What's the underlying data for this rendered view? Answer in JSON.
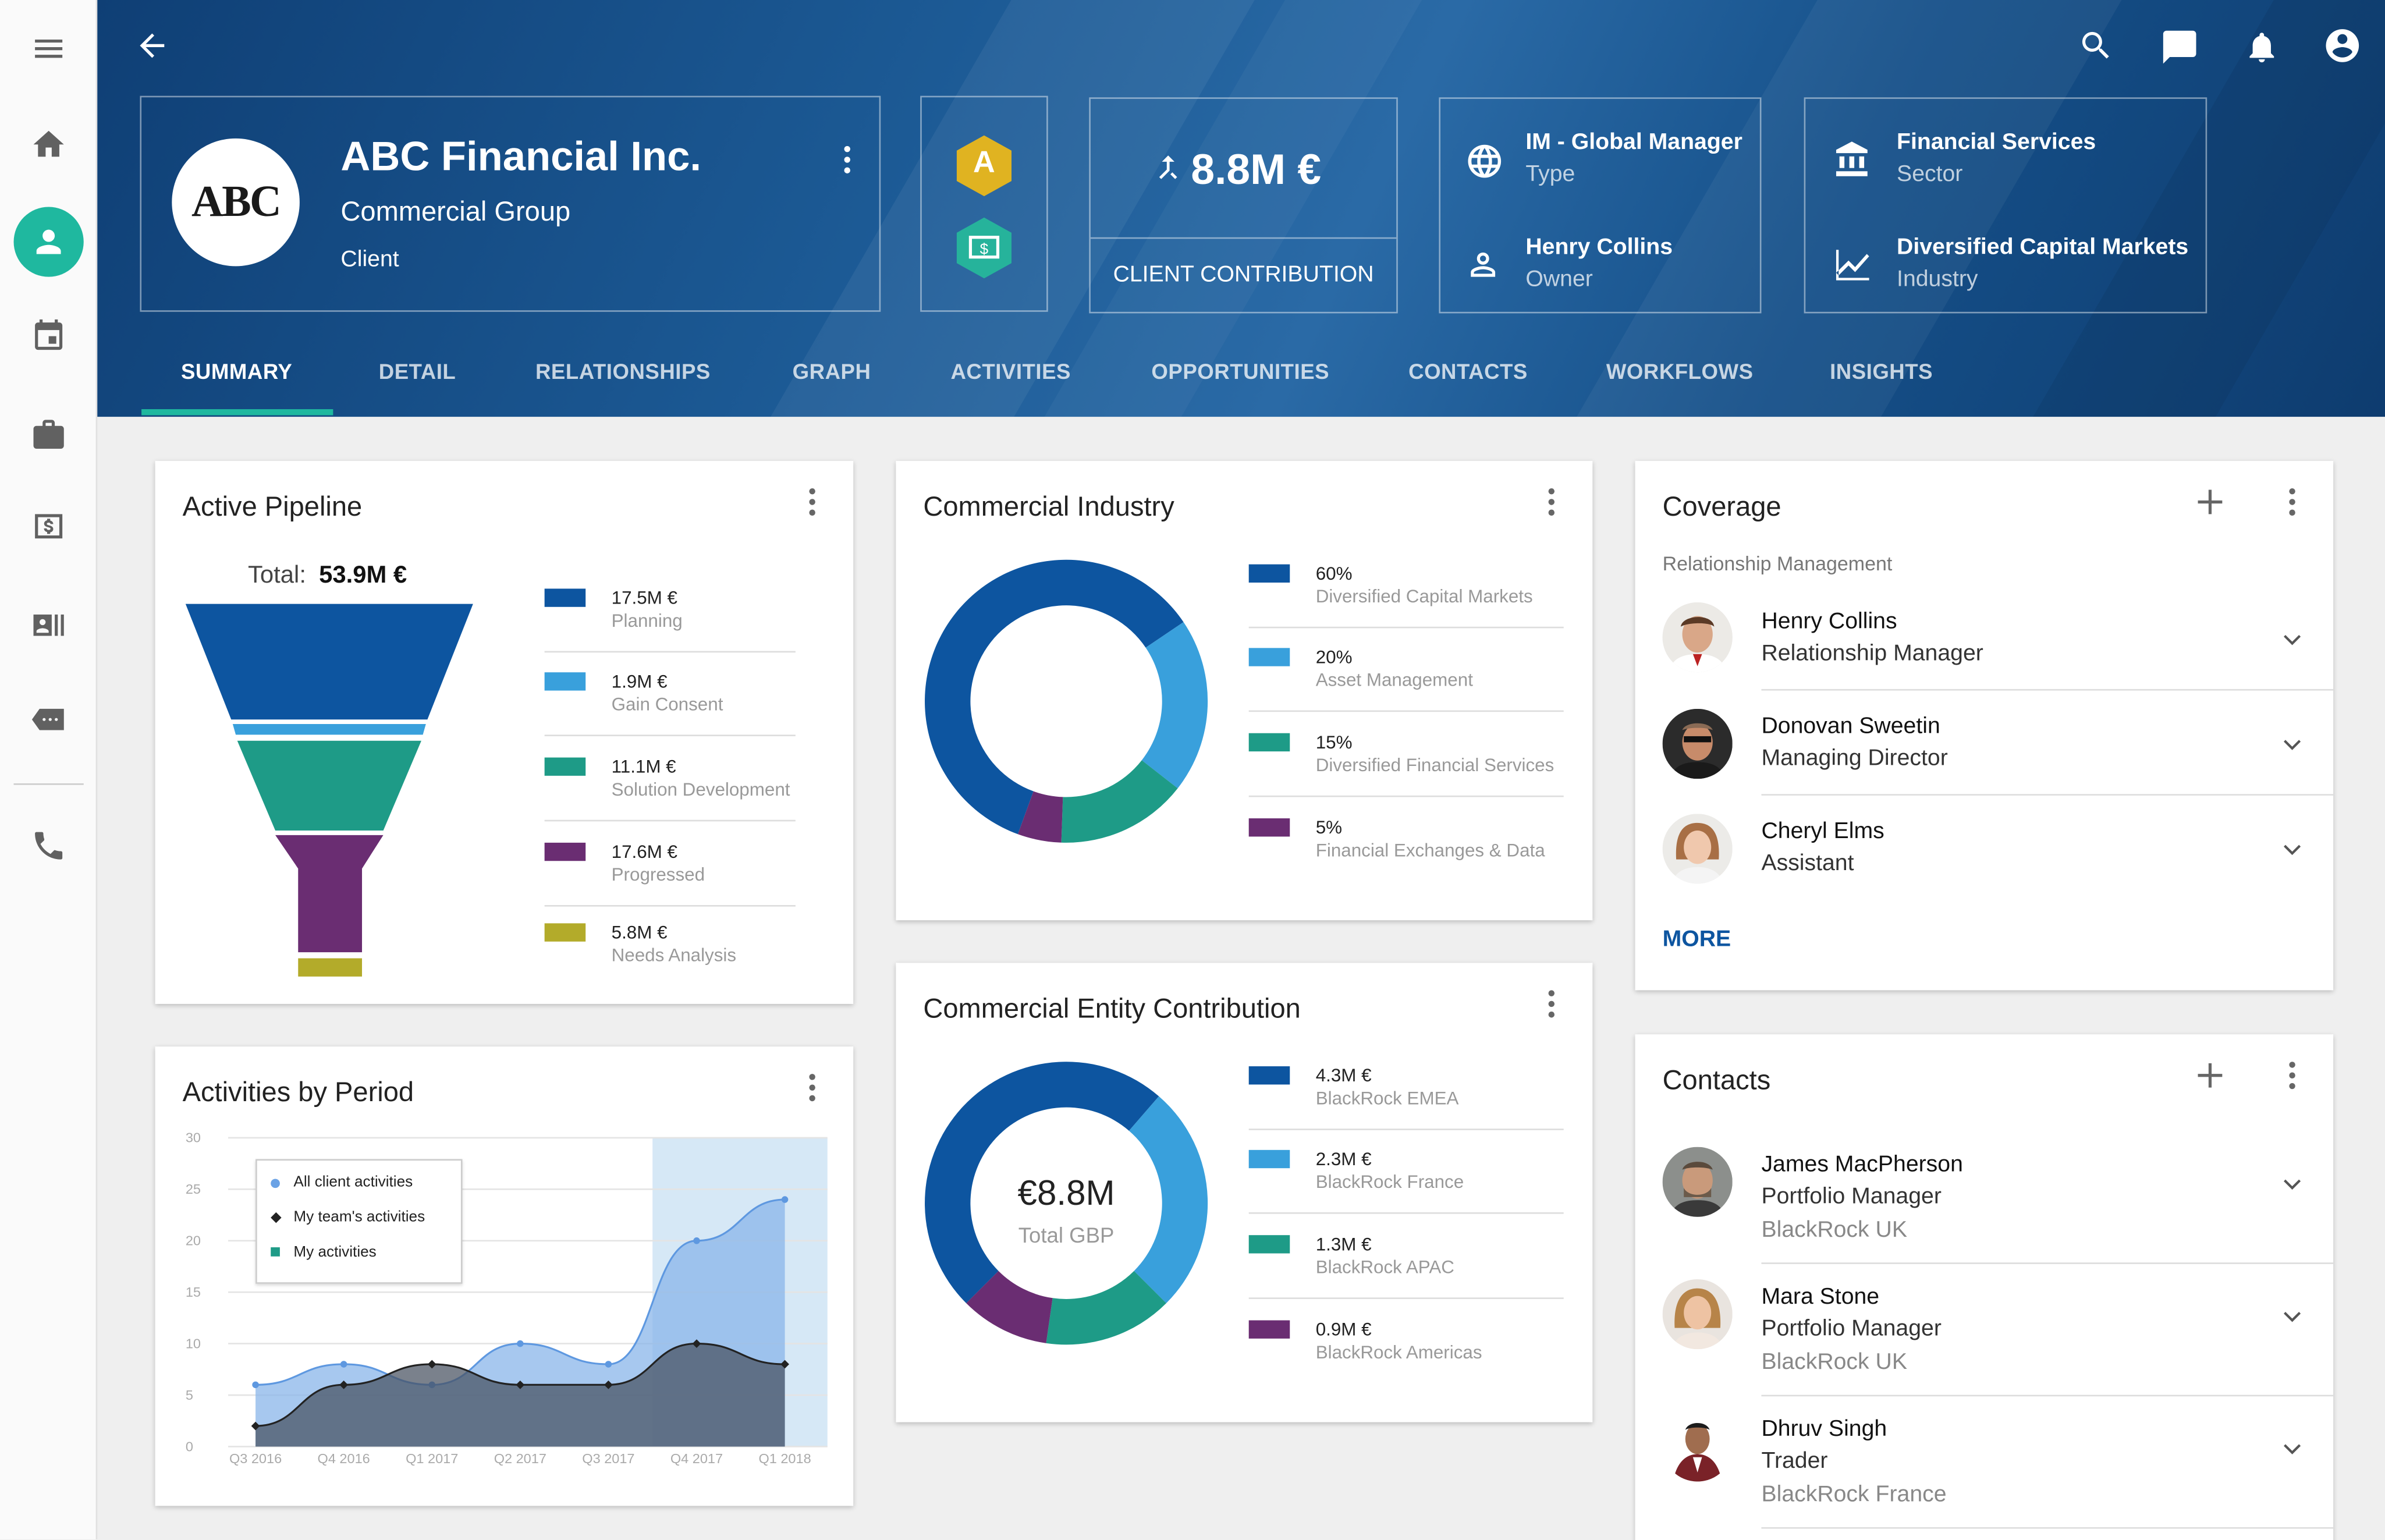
{
  "rail": {
    "items": [
      "menu-icon",
      "home-icon",
      "person-icon",
      "calendar-icon",
      "briefcase-icon",
      "money-icon",
      "contact-card-icon",
      "message-icon",
      "phone-icon"
    ]
  },
  "header": {
    "company_name": "ABC Financial Inc.",
    "company_group": "Commercial Group",
    "company_role": "Client",
    "logo_text": "ABC",
    "badge_a": "A",
    "contribution_value": "8.8M €",
    "contribution_label": "CLIENT CONTRIBUTION",
    "type_value": "IM - Global Manager",
    "type_label": "Type",
    "owner_value": "Henry Collins",
    "owner_label": "Owner",
    "sector_value": "Financial Services",
    "sector_label": "Sector",
    "industry_value": "Diversified Capital Markets",
    "industry_label": "Industry"
  },
  "tabs": [
    "SUMMARY",
    "DETAIL",
    "RELATIONSHIPS",
    "GRAPH",
    "ACTIVITIES",
    "OPPORTUNITIES",
    "CONTACTS",
    "WORKFLOWS",
    "INSIGHTS"
  ],
  "pipeline": {
    "title": "Active Pipeline",
    "total_label": "Total:",
    "total_value": "53.9M €",
    "items": [
      {
        "value": "17.5M €",
        "label": "Planning",
        "color": "#0d55a0"
      },
      {
        "value": "1.9M €",
        "label": "Gain Consent",
        "color": "#39a0dc"
      },
      {
        "value": "11.1M €",
        "label": "Solution Development",
        "color": "#1e9b87"
      },
      {
        "value": "17.6M €",
        "label": "Progressed",
        "color": "#6a2d72"
      },
      {
        "value": "5.8M €",
        "label": "Needs Analysis",
        "color": "#b3ab2a"
      }
    ]
  },
  "industry": {
    "title": "Commercial Industry",
    "items": [
      {
        "value": "60%",
        "label": "Diversified Capital Markets",
        "color": "#0d55a0"
      },
      {
        "value": "20%",
        "label": "Asset Management",
        "color": "#39a0dc"
      },
      {
        "value": "15%",
        "label": "Diversified Financial Services",
        "color": "#1e9b87"
      },
      {
        "value": "5%",
        "label": "Financial Exchanges & Data",
        "color": "#6a2d72"
      }
    ]
  },
  "entity": {
    "title": "Commercial Entity Contribution",
    "center_value": "€8.8M",
    "center_label": "Total GBP",
    "items": [
      {
        "value": "4.3M €",
        "label": "BlackRock EMEA",
        "color": "#0d55a0"
      },
      {
        "value": "2.3M €",
        "label": "BlackRock France",
        "color": "#39a0dc"
      },
      {
        "value": "1.3M €",
        "label": "BlackRock APAC",
        "color": "#1e9b87"
      },
      {
        "value": "0.9M €",
        "label": "BlackRock Americas",
        "color": "#6a2d72"
      }
    ]
  },
  "activities": {
    "title": "Activities by Period",
    "legend": [
      "All client activities",
      "My team's activities",
      "My activities"
    ]
  },
  "chart_data": {
    "type": "area",
    "categories": [
      "Q3 2016",
      "Q4 2016",
      "Q1 2017",
      "Q2 2017",
      "Q3 2017",
      "Q4 2017",
      "Q1 2018"
    ],
    "ylim": [
      0,
      30
    ],
    "yticks": [
      0,
      5,
      10,
      15,
      20,
      25,
      30
    ],
    "series": [
      {
        "name": "All client activities",
        "values": [
          6,
          8,
          6,
          10,
          8,
          20,
          24
        ],
        "color": "#8ab6ea"
      },
      {
        "name": "My team's activities",
        "values": [
          2,
          6,
          8,
          6,
          6,
          10,
          8
        ],
        "color": "#333333"
      }
    ]
  },
  "coverage": {
    "title": "Coverage",
    "subtitle": "Relationship Management",
    "people": [
      {
        "name": "Henry Collins",
        "role": "Relationship Manager"
      },
      {
        "name": "Donovan Sweetin",
        "role": "Managing Director"
      },
      {
        "name": "Cheryl Elms",
        "role": "Assistant"
      }
    ],
    "more": "MORE"
  },
  "contacts": {
    "title": "Contacts",
    "people": [
      {
        "name": "James MacPherson",
        "role": "Portfolio Manager",
        "org": "BlackRock UK"
      },
      {
        "name": "Mara Stone",
        "role": "Portfolio Manager",
        "org": "BlackRock UK"
      },
      {
        "name": "Dhruv Singh",
        "role": "Trader",
        "org": "BlackRock France"
      }
    ]
  }
}
